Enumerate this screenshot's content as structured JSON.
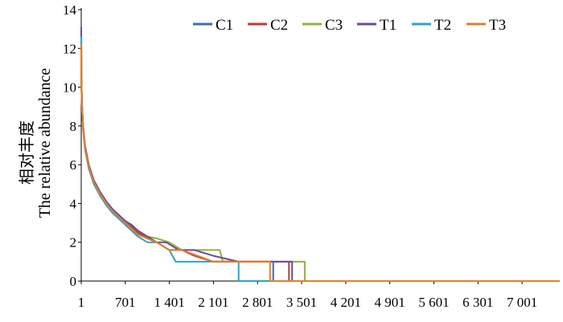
{
  "chart_data": {
    "type": "line",
    "title": "",
    "ylabel_cn": "相对丰度",
    "ylabel": "The relative abundance",
    "xlabel": "",
    "xlim": [
      1,
      7600
    ],
    "ylim": [
      0,
      14
    ],
    "yticks": [
      "0",
      "2",
      "4",
      "6",
      "8",
      "10",
      "12",
      "14"
    ],
    "xtick_values": [
      1,
      701,
      1401,
      2101,
      2801,
      3501,
      4201,
      4901,
      5601,
      6301,
      7001
    ],
    "xtick_labels": [
      "1",
      "701",
      "1 401",
      "2 101",
      "2 801",
      "3 501",
      "4 201",
      "4 901",
      "5 601",
      "6 301",
      "7 001"
    ],
    "legend_position": "top",
    "series": [
      {
        "name": "C1",
        "color": "#3F6BAD",
        "x": [
          1,
          5,
          15,
          30,
          60,
          120,
          200,
          300,
          400,
          500,
          600,
          700,
          800,
          900,
          1050,
          1200,
          1400,
          1600,
          1800,
          2100,
          2500,
          2800,
          3050,
          3050,
          7600
        ],
        "y": [
          12.9,
          10.2,
          9.0,
          8.0,
          7.0,
          6.0,
          5.2,
          4.6,
          4.1,
          3.7,
          3.4,
          3.1,
          2.9,
          2.6,
          2.3,
          2.0,
          1.6,
          1.6,
          1.3,
          1.0,
          1.0,
          1.0,
          1.0,
          0,
          0
        ]
      },
      {
        "name": "C2",
        "color": "#C0392B",
        "x": [
          1,
          5,
          15,
          30,
          60,
          120,
          200,
          300,
          400,
          500,
          600,
          700,
          800,
          900,
          1050,
          1200,
          1400,
          1600,
          1800,
          2100,
          2500,
          2800,
          3100,
          3300,
          3300,
          7600
        ],
        "y": [
          12.4,
          10.0,
          8.9,
          7.9,
          6.9,
          5.9,
          5.1,
          4.5,
          4.0,
          3.6,
          3.3,
          3.0,
          2.8,
          2.5,
          2.2,
          2.0,
          1.6,
          1.6,
          1.3,
          1.0,
          1.0,
          1.0,
          1.0,
          1.0,
          0,
          0
        ]
      },
      {
        "name": "C3",
        "color": "#8DB33F",
        "x": [
          1,
          5,
          15,
          30,
          60,
          120,
          200,
          300,
          400,
          500,
          600,
          700,
          800,
          900,
          1050,
          1200,
          1400,
          1600,
          1850,
          2200,
          2250,
          2800,
          3200,
          3550,
          3550,
          7600
        ],
        "y": [
          12.7,
          10.1,
          9.0,
          8.0,
          7.0,
          6.0,
          5.2,
          4.6,
          4.1,
          3.7,
          3.4,
          3.1,
          2.9,
          2.6,
          2.3,
          2.2,
          2.0,
          1.6,
          1.6,
          1.6,
          1.0,
          1.0,
          1.0,
          1.0,
          0,
          0
        ]
      },
      {
        "name": "T1",
        "color": "#6B4C9A",
        "x": [
          1,
          5,
          15,
          30,
          60,
          120,
          200,
          300,
          400,
          500,
          600,
          700,
          800,
          900,
          1050,
          1200,
          1350,
          1550,
          1800,
          2100,
          2500,
          2800,
          3100,
          3350,
          3350,
          7600
        ],
        "y": [
          13.1,
          10.1,
          9.0,
          8.0,
          7.0,
          6.0,
          5.2,
          4.6,
          4.1,
          3.7,
          3.4,
          3.1,
          2.9,
          2.6,
          2.3,
          2.0,
          2.0,
          1.6,
          1.6,
          1.3,
          1.0,
          1.0,
          1.0,
          1.0,
          0,
          0
        ]
      },
      {
        "name": "T2",
        "color": "#2EA3C7",
        "x": [
          1,
          5,
          15,
          30,
          60,
          120,
          200,
          300,
          400,
          500,
          600,
          700,
          800,
          900,
          1050,
          1200,
          1400,
          1500,
          1700,
          1900,
          2300,
          2500,
          2500,
          7600
        ],
        "y": [
          12.6,
          9.8,
          8.8,
          7.8,
          6.8,
          5.8,
          5.0,
          4.4,
          3.9,
          3.5,
          3.2,
          2.9,
          2.6,
          2.3,
          2.0,
          2.0,
          1.6,
          1.0,
          1.0,
          1.0,
          1.0,
          1.0,
          0,
          0
        ]
      },
      {
        "name": "T3",
        "color": "#E67E22",
        "x": [
          1,
          5,
          15,
          30,
          60,
          120,
          200,
          300,
          400,
          500,
          600,
          700,
          800,
          900,
          1050,
          1200,
          1400,
          1600,
          1850,
          2100,
          2400,
          2700,
          3000,
          3000,
          7600
        ],
        "y": [
          12.2,
          9.9,
          8.9,
          7.9,
          6.9,
          5.9,
          5.1,
          4.5,
          4.0,
          3.6,
          3.3,
          3.0,
          2.7,
          2.4,
          2.2,
          2.0,
          1.6,
          1.6,
          1.3,
          1.0,
          1.0,
          1.0,
          1.0,
          0,
          0
        ]
      }
    ]
  }
}
